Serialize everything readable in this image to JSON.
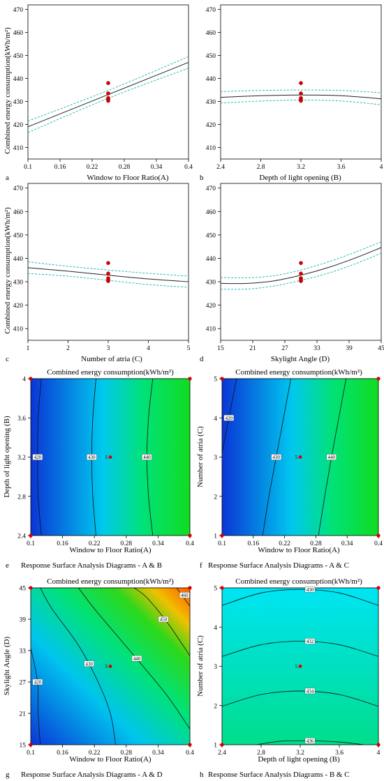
{
  "chart_data": [
    {
      "type": "line",
      "panel": "a",
      "ylabel": "Combined energy consumption(kWh/m²)",
      "xlabel": "Window to Floor Ratio(A)",
      "xlim": [
        0.1,
        0.4
      ],
      "ylim": [
        405,
        472
      ],
      "xticks": [
        0.1,
        0.16,
        0.22,
        0.28,
        0.34,
        0.4
      ],
      "xtick_labels": [
        "0.1",
        "0.16",
        "0.22",
        "0.28",
        "0.34",
        "0.4"
      ],
      "yticks": [
        410,
        420,
        430,
        440,
        450,
        460,
        470
      ],
      "ytick_labels": [
        "410",
        "420",
        "430",
        "440",
        "450",
        "460",
        "470"
      ],
      "series": [
        {
          "role": "fit",
          "x": [
            0.1,
            0.4
          ],
          "y": [
            419,
            447
          ]
        },
        {
          "role": "ci",
          "x": [
            0.1,
            0.25,
            0.4
          ],
          "y": [
            421.5,
            434.8,
            449.5
          ]
        },
        {
          "role": "ci",
          "x": [
            0.1,
            0.25,
            0.4
          ],
          "y": [
            416.5,
            431.4,
            444.5
          ]
        }
      ],
      "points": {
        "x": [
          0.25,
          0.25,
          0.25,
          0.25,
          0.25
        ],
        "y": [
          438,
          433.5,
          431.5,
          430.8,
          430.3
        ]
      }
    },
    {
      "type": "line",
      "panel": "b",
      "ylabel": "",
      "xlabel": "Depth of light opening (B)",
      "xlim": [
        2.4,
        4
      ],
      "ylim": [
        405,
        472
      ],
      "xticks": [
        2.4,
        2.8,
        3.2,
        3.6,
        4
      ],
      "xtick_labels": [
        "2.4",
        "2.8",
        "3.2",
        "3.6",
        "4"
      ],
      "yticks": [
        410,
        420,
        430,
        440,
        450,
        460,
        470
      ],
      "ytick_labels": [
        "410",
        "420",
        "430",
        "440",
        "450",
        "460",
        "470"
      ],
      "series": [
        {
          "role": "fit",
          "x": [
            2.4,
            2.8,
            3.2,
            3.6,
            4
          ],
          "y": [
            431.8,
            432.5,
            432.8,
            432.5,
            431.2
          ]
        },
        {
          "role": "ci",
          "x": [
            2.4,
            2.8,
            3.2,
            3.6,
            4
          ],
          "y": [
            434.3,
            434.8,
            435,
            434.8,
            433.8
          ]
        },
        {
          "role": "ci",
          "x": [
            2.4,
            2.8,
            3.2,
            3.6,
            4
          ],
          "y": [
            429.3,
            430.2,
            430.6,
            430.2,
            428.6
          ]
        }
      ],
      "points": {
        "x": [
          3.2,
          3.2,
          3.2,
          3.2,
          3.2
        ],
        "y": [
          438,
          433.5,
          431.5,
          430.8,
          430.3
        ]
      }
    },
    {
      "type": "line",
      "panel": "c",
      "ylabel": "Combined energy consumption(kWh/m²)",
      "xlabel": "Number of atria (C)",
      "xlim": [
        1,
        5
      ],
      "ylim": [
        405,
        472
      ],
      "xticks": [
        1,
        2,
        3,
        4,
        5
      ],
      "xtick_labels": [
        "1",
        "2",
        "3",
        "4",
        "5"
      ],
      "yticks": [
        410,
        420,
        430,
        440,
        450,
        460,
        470
      ],
      "ytick_labels": [
        "410",
        "420",
        "430",
        "440",
        "450",
        "460",
        "470"
      ],
      "series": [
        {
          "role": "fit",
          "x": [
            1,
            2,
            3,
            4,
            5
          ],
          "y": [
            436,
            434.5,
            432.8,
            431.2,
            430
          ]
        },
        {
          "role": "ci",
          "x": [
            1,
            2,
            3,
            4,
            5
          ],
          "y": [
            438.5,
            436.6,
            435,
            433.6,
            432.4
          ]
        },
        {
          "role": "ci",
          "x": [
            1,
            2,
            3,
            4,
            5
          ],
          "y": [
            433.5,
            432.4,
            430.6,
            428.8,
            427.6
          ]
        }
      ],
      "points": {
        "x": [
          3,
          3,
          3,
          3,
          3
        ],
        "y": [
          438,
          433.5,
          431.5,
          430.8,
          430.3
        ]
      }
    },
    {
      "type": "line",
      "panel": "d",
      "ylabel": "",
      "xlabel": "Skylight Angle (D)",
      "xlim": [
        15,
        45
      ],
      "ylim": [
        405,
        472
      ],
      "xticks": [
        15,
        21,
        27,
        33,
        39,
        45
      ],
      "xtick_labels": [
        "15",
        "21",
        "27",
        "33",
        "39",
        "45"
      ],
      "yticks": [
        410,
        420,
        430,
        440,
        450,
        460,
        470
      ],
      "ytick_labels": [
        "410",
        "420",
        "430",
        "440",
        "450",
        "460",
        "470"
      ],
      "series": [
        {
          "role": "fit",
          "x": [
            15,
            20,
            25,
            30,
            35,
            40,
            45
          ],
          "y": [
            429.3,
            429.3,
            430.4,
            432.8,
            436,
            440,
            444.6
          ]
        },
        {
          "role": "ci",
          "x": [
            15,
            20,
            25,
            30,
            35,
            40,
            45
          ],
          "y": [
            431.8,
            431.7,
            432.6,
            435,
            438.4,
            442.5,
            447
          ]
        },
        {
          "role": "ci",
          "x": [
            15,
            20,
            25,
            30,
            35,
            40,
            45
          ],
          "y": [
            426.8,
            426.9,
            428.2,
            430.6,
            433.6,
            437.5,
            442.2
          ]
        }
      ],
      "points": {
        "x": [
          30,
          30,
          30,
          30,
          30
        ],
        "y": [
          438,
          433.5,
          431.5,
          430.8,
          430.3
        ]
      }
    },
    {
      "type": "heatmap",
      "panel": "e",
      "title": "Combined energy consumption(kWh/m²)",
      "caption": "Response Surface Analysis Diagrams - A & B",
      "xlabel": "Window to Floor Ratio(A)",
      "ylabel": "Depth of light opening (B)",
      "xlim": [
        0.1,
        0.4
      ],
      "ylim": [
        2.4,
        4
      ],
      "xticks": [
        0.1,
        0.16,
        0.22,
        0.28,
        0.34,
        0.4
      ],
      "xtick_labels": [
        "0.1",
        "0.16",
        "0.22",
        "0.28",
        "0.34",
        "0.4"
      ],
      "yticks": [
        2.4,
        2.8,
        3.2,
        3.6,
        4
      ],
      "ytick_labels": [
        "2.4",
        "2.8",
        "3.2",
        "3.6",
        "4"
      ],
      "color_range": [
        418,
        448
      ],
      "contours": [
        {
          "level": 420,
          "label": "420",
          "points": [
            [
              0.12,
              2.4
            ],
            [
              0.114,
              2.8
            ],
            [
              0.113,
              3.2
            ],
            [
              0.114,
              3.6
            ],
            [
              0.12,
              4
            ]
          ],
          "label_at": [
            0.113,
            3.2
          ]
        },
        {
          "level": 430,
          "label": "430",
          "points": [
            [
              0.223,
              2.4
            ],
            [
              0.217,
              2.8
            ],
            [
              0.215,
              3.2
            ],
            [
              0.217,
              3.6
            ],
            [
              0.223,
              4
            ]
          ],
          "label_at": [
            0.215,
            3.2
          ]
        },
        {
          "level": 440,
          "label": "440",
          "points": [
            [
              0.33,
              2.4
            ],
            [
              0.322,
              2.8
            ],
            [
              0.319,
              3.2
            ],
            [
              0.322,
              3.6
            ],
            [
              0.33,
              4
            ]
          ],
          "label_at": [
            0.319,
            3.2
          ]
        }
      ],
      "center": {
        "x": 0.25,
        "y": 3.2,
        "label": "5"
      },
      "corners": [
        [
          0.1,
          2.4
        ],
        [
          0.4,
          2.4
        ],
        [
          0.1,
          4
        ],
        [
          0.4,
          4
        ]
      ]
    },
    {
      "type": "heatmap",
      "panel": "f",
      "title": "Combined energy consumption(kWh/m²)",
      "caption": "Response Surface Analysis Diagrams - A & C",
      "xlabel": "Window to Floor Ratio(A)",
      "ylabel": "Number of atria (C)",
      "xlim": [
        0.1,
        0.4
      ],
      "ylim": [
        1,
        5
      ],
      "xticks": [
        0.1,
        0.16,
        0.22,
        0.28,
        0.34,
        0.4
      ],
      "xtick_labels": [
        "0.1",
        "0.16",
        "0.22",
        "0.28",
        "0.34",
        "0.4"
      ],
      "yticks": [
        1,
        2,
        3,
        4,
        5
      ],
      "ytick_labels": [
        "1",
        "2",
        "3",
        "4",
        "5"
      ],
      "color_range": [
        418,
        448
      ],
      "contours": [
        {
          "level": 420,
          "label": "420",
          "points": [
            [
              0.128,
              5
            ],
            [
              0.113,
              4
            ],
            [
              0.1,
              3.1
            ]
          ],
          "label_at": [
            0.113,
            4
          ]
        },
        {
          "level": 430,
          "label": "430",
          "points": [
            [
              0.232,
              5
            ],
            [
              0.218,
              4
            ],
            [
              0.204,
              3
            ],
            [
              0.19,
              2
            ],
            [
              0.178,
              1
            ]
          ],
          "label_at": [
            0.204,
            3
          ]
        },
        {
          "level": 440,
          "label": "440",
          "points": [
            [
              0.338,
              5
            ],
            [
              0.324,
              4
            ],
            [
              0.31,
              3
            ],
            [
              0.297,
              2
            ],
            [
              0.285,
              1
            ]
          ],
          "label_at": [
            0.31,
            3
          ]
        }
      ],
      "center": {
        "x": 0.25,
        "y": 3,
        "label": "5"
      },
      "corners": [
        [
          0.1,
          1
        ],
        [
          0.4,
          1
        ],
        [
          0.1,
          5
        ],
        [
          0.4,
          5
        ]
      ]
    },
    {
      "type": "heatmap",
      "panel": "g",
      "title": "Combined energy consumption(kWh/m²)",
      "caption": "Response Surface Analysis Diagrams - A & D",
      "xlabel": "Window to Floor Ratio(A)",
      "ylabel": "Skylight Angle (D)",
      "xlim": [
        0.1,
        0.4
      ],
      "ylim": [
        15,
        45
      ],
      "xticks": [
        0.1,
        0.16,
        0.22,
        0.28,
        0.34,
        0.4
      ],
      "xtick_labels": [
        "0.1",
        "0.16",
        "0.22",
        "0.28",
        "0.34",
        "0.4"
      ],
      "yticks": [
        15,
        21,
        27,
        33,
        39,
        45
      ],
      "ytick_labels": [
        "15",
        "21",
        "27",
        "33",
        "39",
        "45"
      ],
      "color_range": [
        418,
        462
      ],
      "contours": [
        {
          "level": 420,
          "label": "420",
          "points": [
            [
              0.118,
              15
            ],
            [
              0.114,
              21
            ],
            [
              0.113,
              27
            ],
            [
              0.1,
              33.5
            ]
          ],
          "label_at": [
            0.113,
            27
          ]
        },
        {
          "level": 430,
          "label": "430",
          "points": [
            [
              0.26,
              15
            ],
            [
              0.25,
              21
            ],
            [
              0.227,
              27
            ],
            [
              0.19,
              34
            ],
            [
              0.14,
              41
            ],
            [
              0.118,
              45
            ]
          ],
          "label_at": [
            0.21,
            30.5
          ]
        },
        {
          "level": 440,
          "label": "440",
          "points": [
            [
              0.4,
              18
            ],
            [
              0.36,
              24
            ],
            [
              0.32,
              29
            ],
            [
              0.27,
              35
            ],
            [
              0.22,
              41
            ],
            [
              0.19,
              45
            ]
          ],
          "label_at": [
            0.3,
            31.5
          ]
        },
        {
          "level": 450,
          "label": "450",
          "points": [
            [
              0.4,
              32
            ],
            [
              0.36,
              38
            ],
            [
              0.32,
              43
            ],
            [
              0.295,
              45
            ]
          ],
          "label_at": [
            0.35,
            39
          ]
        },
        {
          "level": 460,
          "label": "460",
          "points": [
            [
              0.4,
              41.5
            ],
            [
              0.375,
              45
            ]
          ],
          "label_at": [
            0.39,
            43.6
          ]
        }
      ],
      "center": {
        "x": 0.25,
        "y": 30,
        "label": "5"
      },
      "corners": [
        [
          0.1,
          15
        ],
        [
          0.4,
          15
        ],
        [
          0.1,
          45
        ],
        [
          0.4,
          45
        ]
      ]
    },
    {
      "type": "heatmap",
      "panel": "h",
      "title": "Combined energy consumption(kWh/m²)",
      "caption": "Response Surface Analysis Diagrams - B & C",
      "xlabel": "Depth of light opening (B)",
      "ylabel": "Number of atria (C)",
      "xlim": [
        2.4,
        4
      ],
      "ylim": [
        1,
        5
      ],
      "xticks": [
        2.4,
        2.8,
        3.2,
        3.6,
        4
      ],
      "xtick_labels": [
        "2.4",
        "2.8",
        "3.2",
        "3.6",
        "4"
      ],
      "yticks": [
        1,
        2,
        3,
        4,
        5
      ],
      "ytick_labels": [
        "1",
        "2",
        "3",
        "4",
        "5"
      ],
      "color_range": [
        418,
        448
      ],
      "contours": [
        {
          "level": 430,
          "label": "430",
          "points": [
            [
              2.4,
              4.55
            ],
            [
              2.8,
              4.87
            ],
            [
              3.2,
              4.96
            ],
            [
              3.6,
              4.87
            ],
            [
              4,
              4.55
            ]
          ],
          "label_at": [
            3.3,
            4.96
          ]
        },
        {
          "level": 432,
          "label": "432",
          "points": [
            [
              2.4,
              3.25
            ],
            [
              2.8,
              3.55
            ],
            [
              3.2,
              3.64
            ],
            [
              3.6,
              3.55
            ],
            [
              4,
              3.25
            ]
          ],
          "label_at": [
            3.3,
            3.64
          ]
        },
        {
          "level": 434,
          "label": "434",
          "points": [
            [
              2.4,
              1.98
            ],
            [
              2.8,
              2.28
            ],
            [
              3.2,
              2.37
            ],
            [
              3.6,
              2.28
            ],
            [
              4,
              1.98
            ]
          ],
          "label_at": [
            3.3,
            2.37
          ]
        },
        {
          "level": 436,
          "label": "436",
          "points": [
            [
              2.75,
              1
            ],
            [
              3.0,
              1.09
            ],
            [
              3.3,
              1.1
            ],
            [
              3.6,
              1.07
            ],
            [
              3.85,
              1
            ]
          ],
          "label_at": [
            3.3,
            1.1
          ]
        }
      ],
      "center": {
        "x": 3.2,
        "y": 3,
        "label": "5"
      },
      "corners": [
        [
          2.4,
          1
        ],
        [
          4,
          1
        ],
        [
          2.4,
          5
        ],
        [
          4,
          5
        ]
      ]
    }
  ]
}
